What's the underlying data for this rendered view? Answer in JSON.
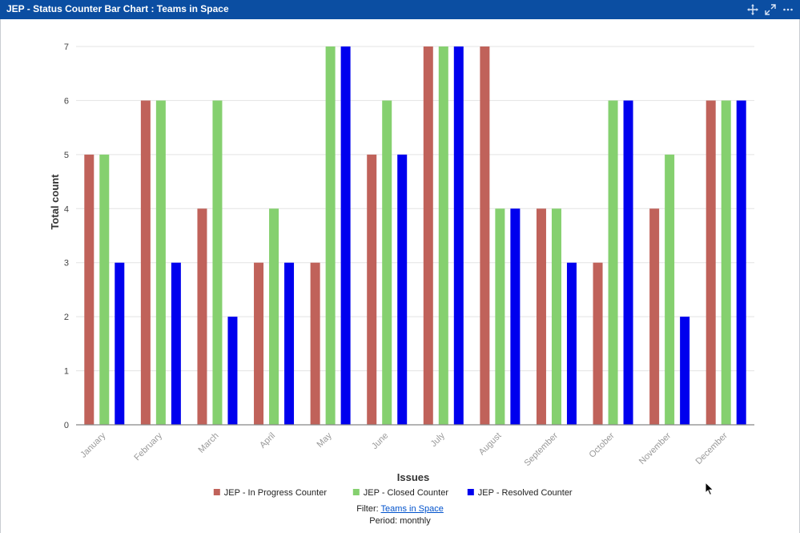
{
  "window": {
    "title": "JEP - Status Counter Bar Chart : Teams in Space",
    "icons": [
      "move-icon",
      "expand-icon",
      "more-icon"
    ]
  },
  "chart_data": {
    "type": "bar",
    "categories": [
      "January",
      "February",
      "March",
      "April",
      "May",
      "June",
      "July",
      "August",
      "September",
      "October",
      "November",
      "December"
    ],
    "series": [
      {
        "name": "JEP - In Progress Counter",
        "color": "#c0625a",
        "values": [
          5,
          6,
          4,
          3,
          3,
          5,
          7,
          7,
          4,
          3,
          4,
          6
        ]
      },
      {
        "name": "JEP - Closed Counter",
        "color": "#85d06f",
        "values": [
          5,
          6,
          6,
          4,
          7,
          6,
          7,
          4,
          4,
          6,
          5,
          6
        ]
      },
      {
        "name": "JEP - Resolved Counter",
        "color": "#0000ee",
        "values": [
          3,
          3,
          2,
          3,
          7,
          5,
          7,
          4,
          3,
          6,
          2,
          6
        ]
      }
    ],
    "xlabel": "Issues",
    "ylabel": "Total count",
    "ylim": [
      0,
      7
    ],
    "yticks": [
      0,
      1,
      2,
      3,
      4,
      5,
      6,
      7
    ],
    "grid": true,
    "legend": "bottom"
  },
  "footer": {
    "filter_label": "Filter:",
    "filter_link": "Teams in Space",
    "period_text": "Period: monthly"
  }
}
